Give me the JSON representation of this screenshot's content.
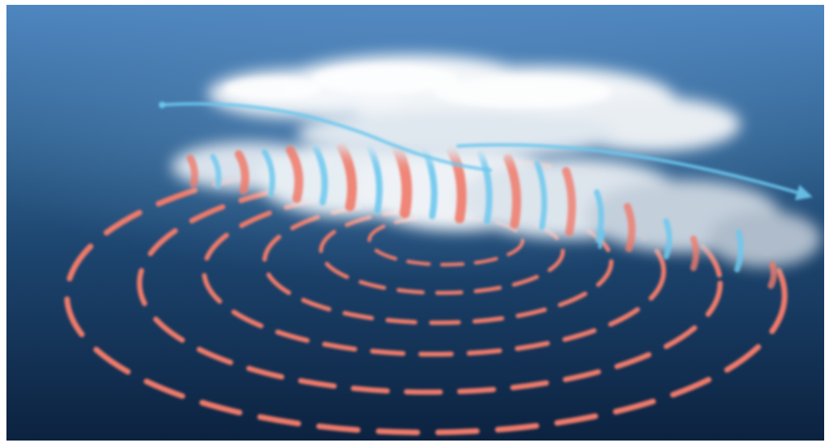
{
  "image": {
    "subject": "storm-cloud-circulation-visualization",
    "colors": {
      "sky_top": "#4e86c0",
      "sky_horizon": "#2f5f8c",
      "ocean_near": "#0f2746",
      "ocean_far": "#1e4a74",
      "cloud": "#f2f5f8",
      "cloud_shadow": "#9fb0c2",
      "warm_flow": "#f07a6a",
      "cool_flow": "#6cc8ef"
    },
    "elements": {
      "ring_count": 6,
      "vortex_streak_count": 22,
      "outflow_arrow_count": 2
    }
  }
}
